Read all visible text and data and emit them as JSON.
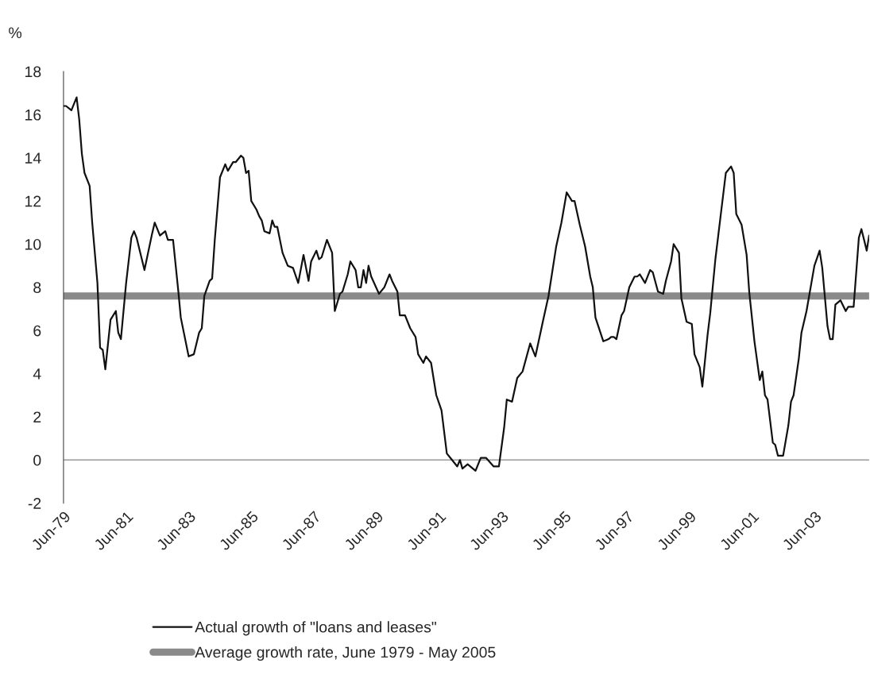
{
  "chart_data": {
    "type": "line",
    "ylabel": "%",
    "xlim": [
      "1979-06",
      "2005-03"
    ],
    "ylim": [
      -2,
      18
    ],
    "yticks": [
      -2,
      0,
      2,
      4,
      6,
      8,
      10,
      12,
      14,
      16,
      18
    ],
    "xticks": [
      {
        "value": "1979-06",
        "label": "Jun-79"
      },
      {
        "value": "1981-06",
        "label": "Jun-81"
      },
      {
        "value": "1983-06",
        "label": "Jun-83"
      },
      {
        "value": "1985-06",
        "label": "Jun-85"
      },
      {
        "value": "1987-06",
        "label": "Jun-87"
      },
      {
        "value": "1989-06",
        "label": "Jun-89"
      },
      {
        "value": "1991-06",
        "label": "Jun-91"
      },
      {
        "value": "1993-06",
        "label": "Jun-93"
      },
      {
        "value": "1995-06",
        "label": "Jun-95"
      },
      {
        "value": "1997-06",
        "label": "Jun-97"
      },
      {
        "value": "1999-06",
        "label": "Jun-99"
      },
      {
        "value": "2001-06",
        "label": "Jun-01"
      },
      {
        "value": "2003-06",
        "label": "Jun-03"
      }
    ],
    "legend": "bottom",
    "ref_lines": [
      {
        "axis": "y",
        "value": 0,
        "color": "#999999"
      }
    ],
    "series": [
      {
        "name": "Actual growth of \"loans and leases\"",
        "color": "#111111",
        "x": [
          "1979-06",
          "1979-07",
          "1979-09",
          "1979-11",
          "1979-12",
          "1980-01",
          "1980-02",
          "1980-04",
          "1980-05",
          "1980-07",
          "1980-08",
          "1980-09",
          "1980-10",
          "1980-12",
          "1981-02",
          "1981-03",
          "1981-04",
          "1981-06",
          "1981-08",
          "1981-09",
          "1981-10",
          "1982-01",
          "1982-04",
          "1982-05",
          "1982-07",
          "1982-09",
          "1982-10",
          "1982-12",
          "1983-02",
          "1983-03",
          "1983-06",
          "1983-08",
          "1983-10",
          "1983-11",
          "1983-12",
          "1984-02",
          "1984-03",
          "1984-04",
          "1984-06",
          "1984-08",
          "1984-09",
          "1984-11",
          "1984-12",
          "1985-02",
          "1985-03",
          "1985-04",
          "1985-05",
          "1985-06",
          "1985-08",
          "1985-09",
          "1985-10",
          "1985-11",
          "1986-01",
          "1986-02",
          "1986-03",
          "1986-04",
          "1986-06",
          "1986-08",
          "1986-10",
          "1986-12",
          "1987-02",
          "1987-04",
          "1987-05",
          "1987-07",
          "1987-08",
          "1987-09",
          "1987-11",
          "1988-01",
          "1988-02",
          "1988-04",
          "1988-05",
          "1988-07",
          "1988-08",
          "1988-10",
          "1988-11",
          "1988-12",
          "1989-01",
          "1989-02",
          "1989-03",
          "1989-04",
          "1989-07",
          "1989-09",
          "1989-11",
          "1989-12",
          "1990-02",
          "1990-03",
          "1990-05",
          "1990-07",
          "1990-09",
          "1990-10",
          "1990-12",
          "1991-01",
          "1991-03",
          "1991-05",
          "1991-07",
          "1991-09",
          "1991-11",
          "1992-01",
          "1992-02",
          "1992-03",
          "1992-05",
          "1992-08",
          "1992-10",
          "1992-12",
          "1993-03",
          "1993-05",
          "1993-07",
          "1993-08",
          "1993-10",
          "1993-12",
          "1994-02",
          "1994-05",
          "1994-07",
          "1994-10",
          "1994-12",
          "1995-03",
          "1995-05",
          "1995-07",
          "1995-09",
          "1995-10",
          "1995-12",
          "1996-02",
          "1996-04",
          "1996-05",
          "1996-06",
          "1996-09",
          "1996-11",
          "1996-12",
          "1997-01",
          "1997-02",
          "1997-04",
          "1997-05",
          "1997-07",
          "1997-09",
          "1997-10",
          "1997-11",
          "1998-01",
          "1998-03",
          "1998-04",
          "1998-06",
          "1998-08",
          "1998-09",
          "1998-11",
          "1998-12",
          "1999-02",
          "1999-03",
          "1999-05",
          "1999-07",
          "1999-08",
          "1999-10",
          "1999-11",
          "2000-01",
          "2000-02",
          "2000-04",
          "2000-06",
          "2000-08",
          "2000-10",
          "2000-11",
          "2000-12",
          "2001-02",
          "2001-04",
          "2001-05",
          "2001-07",
          "2001-09",
          "2001-10",
          "2001-11",
          "2001-12",
          "2002-02",
          "2002-03",
          "2002-04",
          "2002-06",
          "2002-08",
          "2002-09",
          "2002-10",
          "2002-12",
          "2003-01",
          "2003-03",
          "2003-06",
          "2003-08",
          "2003-09",
          "2003-11",
          "2003-12",
          "2004-01",
          "2004-02",
          "2004-04",
          "2004-06",
          "2004-07",
          "2004-09",
          "2004-11",
          "2004-12",
          "2005-02",
          "2005-03"
        ],
        "values": [
          16.4,
          16.4,
          16.2,
          16.8,
          15.8,
          14.2,
          13.3,
          12.7,
          11.0,
          8.2,
          5.2,
          5.1,
          4.2,
          6.5,
          6.9,
          5.9,
          5.6,
          8.2,
          10.3,
          10.6,
          10.3,
          8.8,
          10.5,
          11.0,
          10.4,
          10.6,
          10.2,
          10.2,
          7.8,
          6.6,
          4.8,
          4.9,
          5.9,
          6.1,
          7.6,
          8.3,
          8.4,
          10.2,
          13.1,
          13.7,
          13.4,
          13.8,
          13.8,
          14.1,
          14.0,
          13.3,
          13.4,
          12.0,
          11.6,
          11.3,
          11.1,
          10.6,
          10.5,
          11.1,
          10.8,
          10.8,
          9.6,
          9.0,
          8.9,
          8.2,
          9.5,
          8.3,
          9.2,
          9.7,
          9.3,
          9.4,
          10.2,
          9.6,
          6.9,
          7.7,
          7.8,
          8.6,
          9.2,
          8.8,
          8.0,
          8.0,
          8.8,
          8.2,
          9.0,
          8.5,
          7.7,
          8.0,
          8.6,
          8.3,
          7.8,
          6.7,
          6.7,
          6.1,
          5.7,
          4.9,
          4.5,
          4.8,
          4.5,
          3.0,
          2.3,
          0.3,
          0.0,
          -0.3,
          0.0,
          -0.4,
          -0.2,
          -0.5,
          0.1,
          0.1,
          -0.3,
          -0.3,
          1.5,
          2.8,
          2.7,
          3.8,
          4.1,
          5.4,
          4.8,
          6.5,
          7.6,
          9.9,
          11.0,
          12.4,
          12.0,
          12.0,
          10.9,
          9.9,
          8.5,
          8.0,
          6.6,
          5.5,
          5.6,
          5.7,
          5.7,
          5.6,
          6.7,
          6.9,
          8.0,
          8.5,
          8.5,
          8.6,
          8.2,
          8.8,
          8.7,
          7.8,
          7.7,
          8.3,
          9.2,
          10.0,
          9.6,
          7.5,
          6.4,
          6.3,
          4.9,
          4.3,
          3.4,
          5.8,
          6.8,
          9.3,
          11.3,
          13.3,
          13.6,
          13.3,
          11.4,
          10.9,
          9.5,
          7.8,
          5.5,
          3.7,
          4.1,
          3.0,
          2.8,
          0.8,
          0.7,
          0.2,
          0.2,
          1.6,
          2.7,
          3.0,
          4.7,
          5.9,
          6.9,
          9.0,
          9.7,
          8.9,
          6.2,
          5.6,
          5.6,
          7.2,
          7.4,
          6.9,
          7.1,
          7.1,
          10.3,
          10.7,
          9.7,
          10.4
        ]
      },
      {
        "name": "Average growth rate, June 1979 - May 2005",
        "color": "#8a8a8a",
        "x": [
          "1979-06",
          "2005-03"
        ],
        "values": [
          7.6,
          7.6
        ]
      }
    ]
  }
}
